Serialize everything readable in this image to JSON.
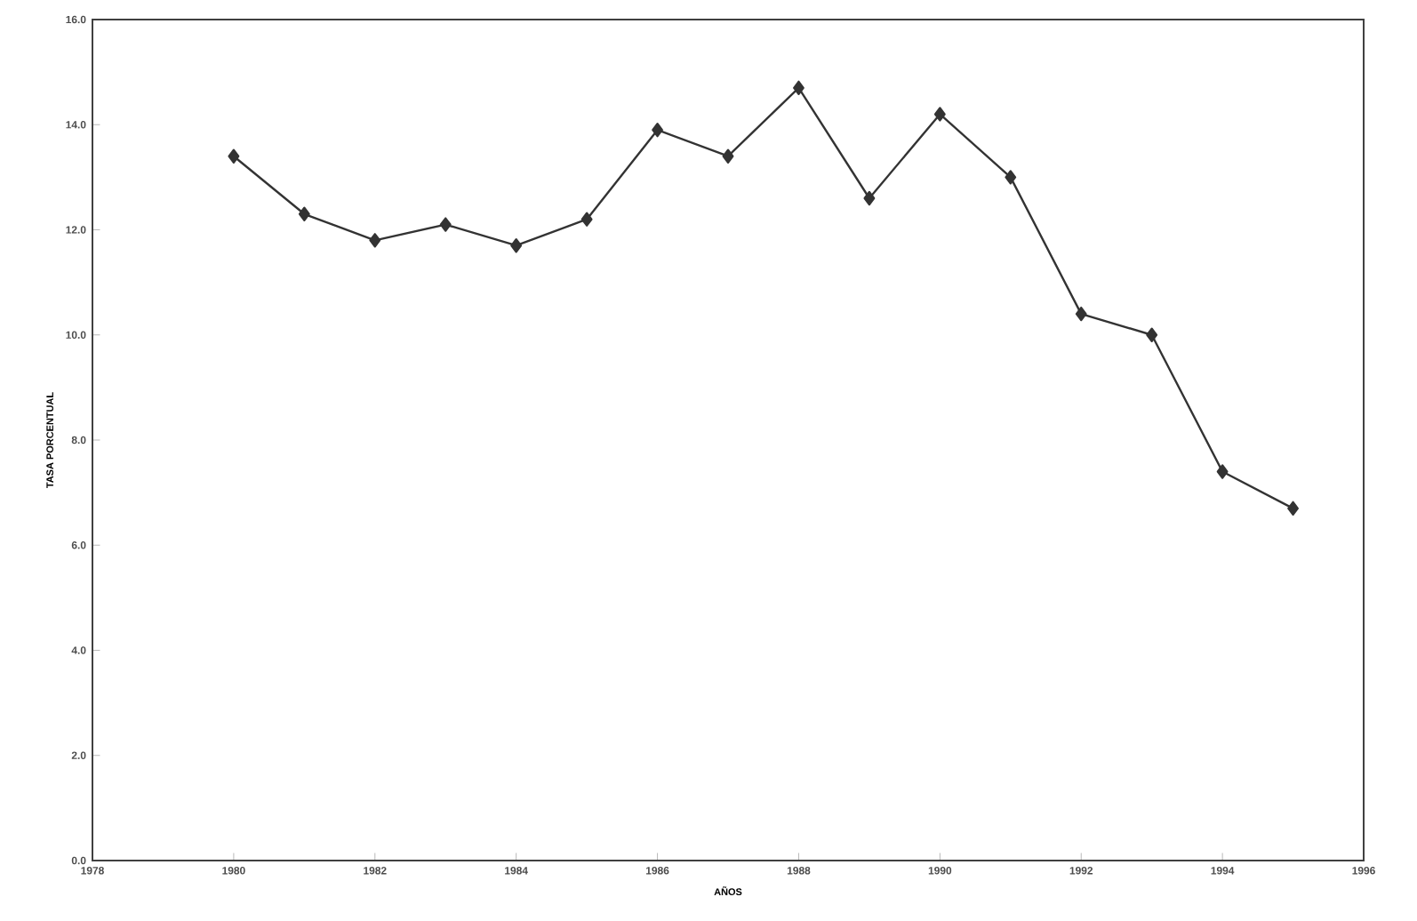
{
  "chart_data": {
    "type": "line",
    "xlabel": "AÑOS",
    "ylabel": "TASA PORCENTUAL",
    "x": [
      1980,
      1981,
      1982,
      1983,
      1984,
      1985,
      1986,
      1987,
      1988,
      1989,
      1990,
      1991,
      1992,
      1993,
      1994,
      1995
    ],
    "values": [
      13.4,
      12.3,
      11.8,
      12.1,
      11.7,
      12.2,
      13.9,
      13.4,
      14.7,
      12.6,
      14.2,
      13.0,
      10.4,
      10.0,
      7.4,
      6.7
    ],
    "color": "#333333",
    "marker": "diamond",
    "line_style": "solid",
    "grid": false,
    "xlim": [
      1978,
      1996
    ],
    "xticks": [
      1978,
      1980,
      1982,
      1984,
      1986,
      1988,
      1990,
      1992,
      1994,
      1996
    ],
    "ylim": [
      0,
      16
    ],
    "yticks": [
      {
        "value": 0,
        "label": "0.0"
      },
      {
        "value": 2,
        "label": "2.0"
      },
      {
        "value": 4,
        "label": "4.0"
      },
      {
        "value": 6,
        "label": "6.0"
      },
      {
        "value": 8,
        "label": "8.0"
      },
      {
        "value": 10,
        "label": "10.0"
      },
      {
        "value": 12,
        "label": "12.0"
      },
      {
        "value": 14,
        "label": "14.0"
      },
      {
        "value": 16,
        "label": "16.0"
      }
    ]
  }
}
